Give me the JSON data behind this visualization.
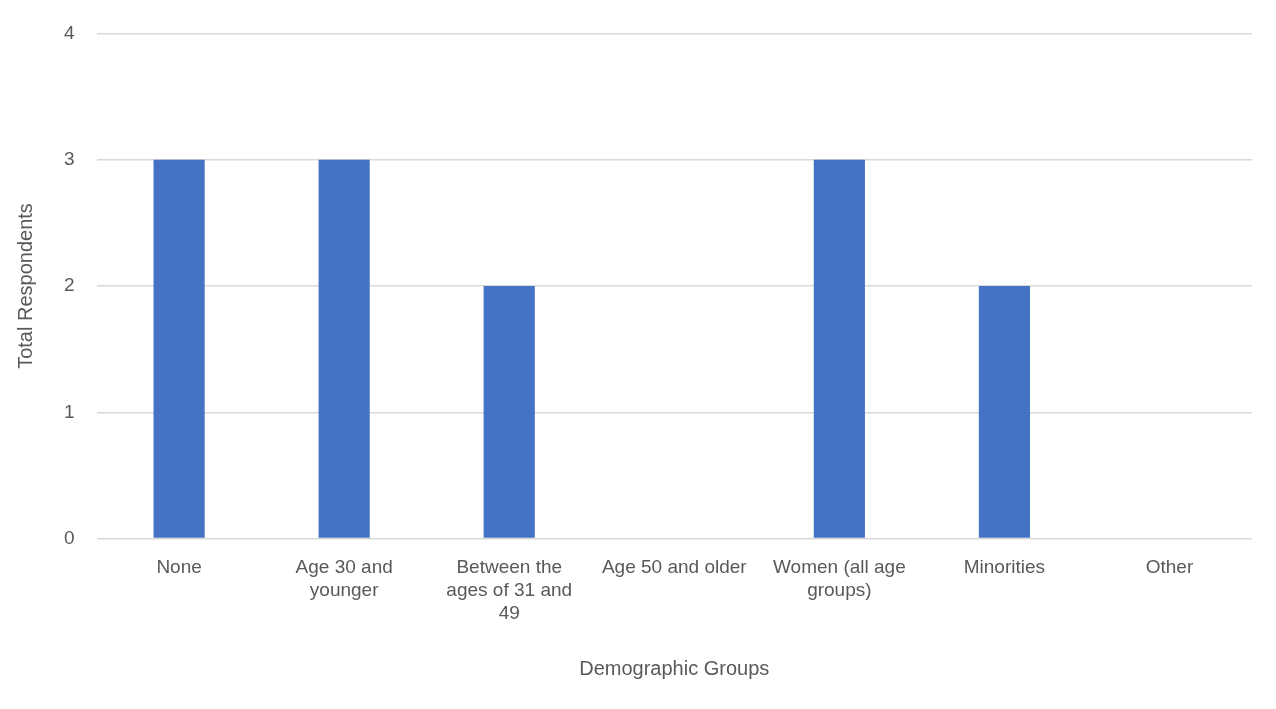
{
  "chart_data": {
    "type": "bar",
    "xlabel": "Demographic Groups",
    "ylabel": "Total Respondents",
    "categories": [
      "None",
      "Age 30 and younger",
      "Between the ages of 31 and 49",
      "Age 50 and older",
      "Women (all age groups)",
      "Minorities",
      "Other"
    ],
    "values": [
      3,
      3,
      2,
      0,
      3,
      2,
      0
    ],
    "color": "#4472c4",
    "ylim": [
      0,
      4
    ],
    "yticks": [
      0,
      1,
      2,
      3,
      4
    ],
    "grid": "y",
    "legend": false
  }
}
